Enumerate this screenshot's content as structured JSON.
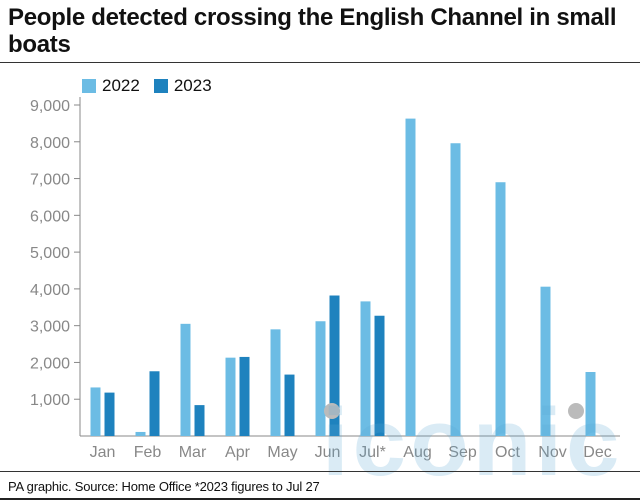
{
  "title": "People detected crossing the English Channel in small boats",
  "footer": "PA graphic. Source: Home Office *2023 figures to Jul 27",
  "watermark": "iconic",
  "colors": {
    "2022": "#6cbce4",
    "2023": "#1e82be",
    "axis": "#888888",
    "grid": "#dddddd"
  },
  "chart_data": {
    "type": "bar",
    "categories": [
      "Jan",
      "Feb",
      "Mar",
      "Apr",
      "May",
      "Jun",
      "Jul*",
      "Aug",
      "Sep",
      "Oct",
      "Nov",
      "Dec"
    ],
    "series": [
      {
        "name": "2022",
        "values": [
          1320,
          110,
          3050,
          2130,
          2900,
          3120,
          3660,
          8630,
          7960,
          6900,
          4060,
          1740
        ]
      },
      {
        "name": "2023",
        "values": [
          1180,
          1760,
          840,
          2150,
          1670,
          3820,
          3270,
          null,
          null,
          null,
          null,
          null
        ]
      }
    ],
    "yticks": [
      "1,000",
      "2,000",
      "3,000",
      "4,000",
      "5,000",
      "6,000",
      "7,000",
      "8,000",
      "9,000"
    ],
    "ylim": [
      0,
      9000
    ],
    "legend": "top-left",
    "grid": false
  }
}
